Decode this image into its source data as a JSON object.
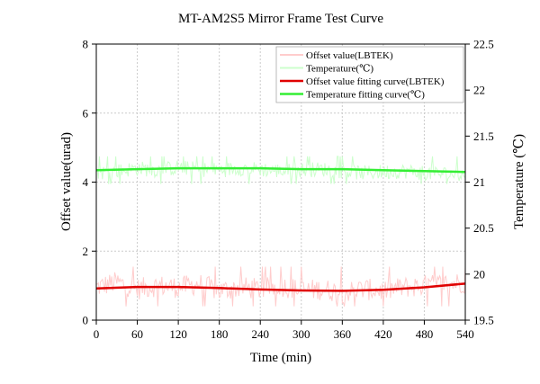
{
  "chart_data": {
    "type": "line",
    "title": "MT-AM2S5 Mirror Frame Test Curve",
    "xlabel": "Time (min)",
    "ylabel": "Offset value(urad)",
    "y2label": "Temperature (℃)",
    "xlim": [
      0,
      540
    ],
    "ylim": [
      0,
      8
    ],
    "y2lim": [
      19.5,
      22.5
    ],
    "xticks": [
      "0",
      "60",
      "120",
      "180",
      "240",
      "300",
      "360",
      "420",
      "480",
      "540"
    ],
    "yticks": [
      "0",
      "2",
      "4",
      "6",
      "8"
    ],
    "y2ticks": [
      "19.5",
      "20",
      "20.5",
      "21",
      "21.5",
      "22",
      "22.5"
    ],
    "grid": true,
    "legend_position": "top-right",
    "series": [
      {
        "name": "Offset value(LBTEK)",
        "axis": "left",
        "color": "#ffcccc",
        "style": "noisy-raw",
        "x": [
          0,
          30,
          60,
          90,
          120,
          150,
          180,
          210,
          240,
          270,
          300,
          330,
          360,
          390,
          420,
          450,
          480,
          510,
          540
        ],
        "values": [
          0.95,
          1.1,
          0.9,
          1.0,
          0.95,
          1.05,
          0.85,
          0.95,
          0.9,
          1.0,
          0.85,
          0.9,
          0.8,
          0.9,
          0.85,
          0.95,
          1.0,
          1.05,
          1.1
        ],
        "band": [
          0.4,
          1.55
        ]
      },
      {
        "name": "Temperature(℃)",
        "axis": "right",
        "color": "#ccffcc",
        "style": "noisy-raw",
        "x": [
          0,
          30,
          60,
          90,
          120,
          150,
          180,
          210,
          240,
          270,
          300,
          330,
          360,
          390,
          420,
          450,
          480,
          510,
          540
        ],
        "values": [
          21.1,
          21.12,
          21.15,
          21.13,
          21.16,
          21.14,
          21.13,
          21.15,
          21.14,
          21.12,
          21.13,
          21.14,
          21.12,
          21.1,
          21.11,
          21.12,
          21.1,
          21.09,
          21.08
        ],
        "band": [
          20.98,
          21.28
        ]
      },
      {
        "name": "Offset value fitting curve(LBTEK)",
        "axis": "left",
        "color": "#e00000",
        "style": "fit",
        "x": [
          0,
          60,
          120,
          180,
          240,
          300,
          360,
          420,
          480,
          540
        ],
        "values": [
          0.92,
          0.96,
          0.96,
          0.93,
          0.89,
          0.86,
          0.85,
          0.88,
          0.95,
          1.06
        ]
      },
      {
        "name": "Temperature fitting curve(℃)",
        "axis": "right",
        "color": "#33ee33",
        "style": "fit",
        "x": [
          0,
          60,
          120,
          180,
          240,
          300,
          360,
          420,
          480,
          540
        ],
        "values": [
          21.13,
          21.14,
          21.15,
          21.15,
          21.15,
          21.14,
          21.14,
          21.13,
          21.12,
          21.11
        ]
      }
    ]
  }
}
